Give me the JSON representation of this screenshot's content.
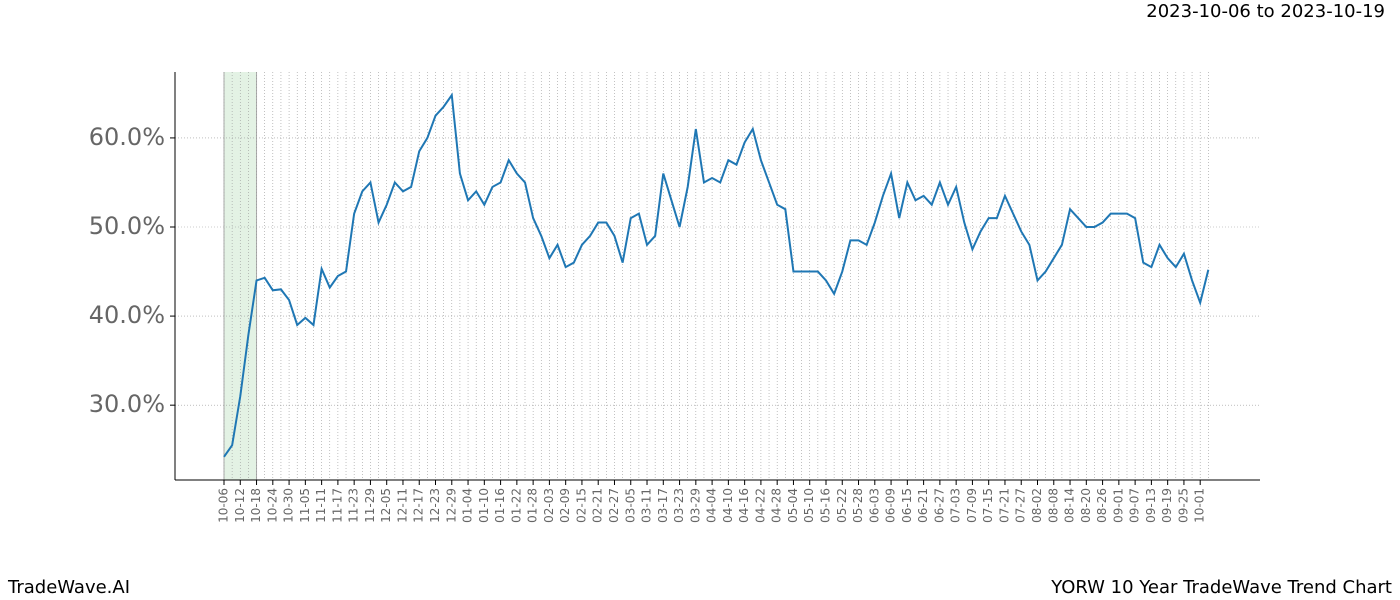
{
  "chart_data": {
    "type": "line",
    "date_range": "2023-10-06 to 2023-10-19",
    "brand": "TradeWave.AI",
    "title": "YORW 10 Year TradeWave Trend Chart",
    "categories": [
      "10-06",
      null,
      "10-12",
      null,
      "10-18",
      null,
      "10-24",
      null,
      "10-30",
      null,
      "11-05",
      null,
      "11-11",
      null,
      "11-17",
      null,
      "11-23",
      null,
      "11-29",
      null,
      "12-05",
      null,
      "12-11",
      null,
      "12-17",
      null,
      "12-23",
      null,
      "12-29",
      null,
      "01-04",
      null,
      "01-10",
      null,
      "01-16",
      null,
      "01-22",
      null,
      "01-28",
      null,
      "02-03",
      null,
      "02-09",
      null,
      "02-15",
      null,
      "02-21",
      null,
      "02-27",
      null,
      "03-05",
      null,
      "03-11",
      null,
      "03-17",
      null,
      "03-23",
      null,
      "03-29",
      null,
      "04-04",
      null,
      "04-10",
      null,
      "04-16",
      null,
      "04-22",
      null,
      "04-28",
      null,
      "05-04",
      null,
      "05-10",
      null,
      "05-16",
      null,
      "05-22",
      null,
      "05-28",
      null,
      "06-03",
      null,
      "06-09",
      null,
      "06-15",
      null,
      "06-21",
      null,
      "06-27",
      null,
      "07-03",
      null,
      "07-09",
      null,
      "07-15",
      null,
      "07-21",
      null,
      "07-27",
      null,
      "08-02",
      null,
      "08-08",
      null,
      "08-14",
      null,
      "08-20",
      null,
      "08-26",
      null,
      "09-01",
      null,
      "09-07",
      null,
      "09-13",
      null,
      "09-19",
      null,
      "09-25",
      null,
      "10-01",
      null
    ],
    "series": [
      {
        "color": "#1f77b4",
        "values": [
          24.2,
          25.5,
          31,
          37.9,
          44,
          44.3,
          42.9,
          43,
          41.8,
          39,
          39.8,
          39,
          45.3,
          43.2,
          44.5,
          45,
          51.5,
          54,
          55,
          50.5,
          52.5,
          55,
          54,
          54.5,
          58.5,
          60,
          62.5,
          63.5,
          64.8,
          56,
          53,
          54,
          52.5,
          54.5,
          55,
          57.5,
          56,
          55,
          51,
          49,
          46.5,
          48,
          45.5,
          46,
          48,
          49,
          50.5,
          50.5,
          49,
          46,
          51,
          51.5,
          48,
          49,
          56,
          53,
          50,
          54.5,
          61,
          55,
          55.5,
          55,
          57.5,
          57,
          59.5,
          61,
          57.5,
          55,
          52.5,
          52,
          45,
          45,
          45,
          45,
          44,
          42.5,
          45,
          48.5,
          48.5,
          48,
          50.5,
          53.5,
          56,
          51,
          55,
          53,
          53.5,
          52.5,
          55,
          52.5,
          54.5,
          50.5,
          47.5,
          49.5,
          51,
          51,
          53.5,
          51.5,
          49.5,
          48,
          44,
          45,
          46.5,
          48,
          52,
          51,
          50,
          50,
          50.5,
          51.5,
          51.5,
          51.5,
          51,
          46,
          45.5,
          48,
          46.5,
          45.5,
          47,
          44,
          41.5,
          45.2
        ]
      }
    ],
    "highlight_x": [
      "10-06",
      "10-18"
    ],
    "highlight_color": "#c8e6c9",
    "ylim": [
      21.6,
      67.4
    ],
    "yticks": [
      {
        "value": 30,
        "label": "30.0%"
      },
      {
        "value": 40,
        "label": "40.0%"
      },
      {
        "value": 50,
        "label": "50.0%"
      },
      {
        "value": 60,
        "label": "60.0%"
      }
    ],
    "grid": true
  }
}
